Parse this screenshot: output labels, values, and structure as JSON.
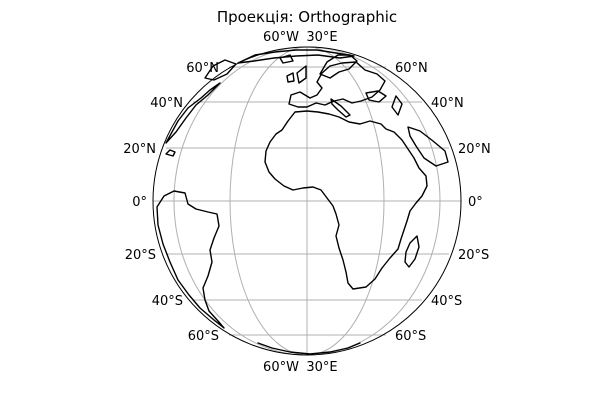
{
  "map": {
    "title": "Проекція: Orthographic",
    "projection": "orthographic",
    "graticule": true,
    "coastlines": true,
    "colors": {
      "coastline": "#000000",
      "graticule": "#b0b0b0",
      "background": "#ffffff"
    },
    "top_labels": {
      "left": "60°W",
      "right": "30°E"
    },
    "bottom_labels": {
      "left": "60°W",
      "right": "30°E"
    },
    "lat_labels": {
      "left": [
        "60°N",
        "40°N",
        "20°N",
        "0°",
        "20°S",
        "40°S",
        "60°S"
      ],
      "right": [
        "60°N",
        "40°N",
        "20°N",
        "0°",
        "20°S",
        "40°S",
        "60°S"
      ]
    }
  }
}
